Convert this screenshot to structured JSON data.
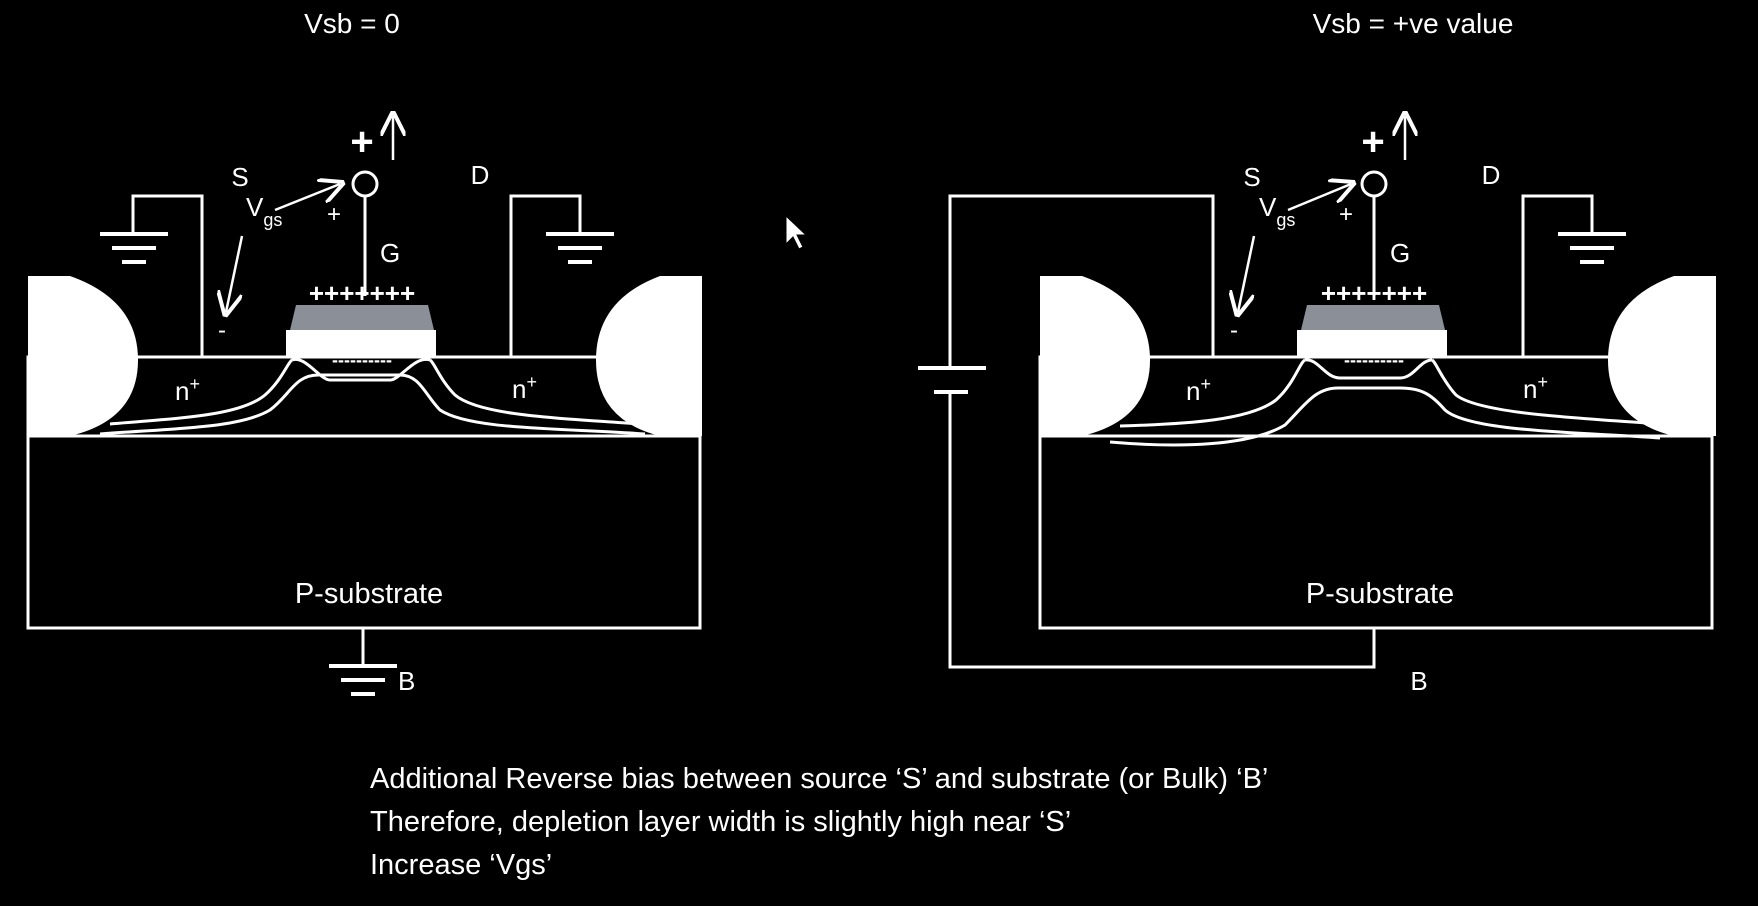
{
  "left": {
    "title": "Vsb = 0",
    "source_label": "S",
    "drain_label": "D",
    "gate_label": "G",
    "plus_big": "+",
    "plus_small": "+",
    "minus_small": "-",
    "vgs_main": "V",
    "vgs_sub": "gs",
    "gate_charges": "+++++++",
    "channel_charges": "----------",
    "n_plus_left": "n",
    "n_plus_right": "n",
    "n_plus_sup": "+",
    "substrate_label": "P-substrate",
    "bulk_label": "B"
  },
  "right": {
    "title": "Vsb = +ve value",
    "source_label": "S",
    "drain_label": "D",
    "gate_label": "G",
    "plus_big": "+",
    "plus_small": "+",
    "minus_small": "-",
    "vgs_main": "V",
    "vgs_sub": "gs",
    "gate_charges": "+++++++",
    "channel_charges": "----------",
    "n_plus_left": "n",
    "n_plus_right": "n",
    "n_plus_sup": "+",
    "substrate_label": "P-substrate",
    "bulk_label": "B"
  },
  "notes": [
    "Additional Reverse bias between source ‘S’ and substrate (or Bulk) ‘B’",
    "Therefore, depletion layer width is slightly high near ‘S’",
    "Increase ‘Vgs’"
  ],
  "colors": {
    "background": "#000000",
    "line": "#ffffff",
    "oxide": "#8a8f98",
    "gate": "#ffffff"
  }
}
